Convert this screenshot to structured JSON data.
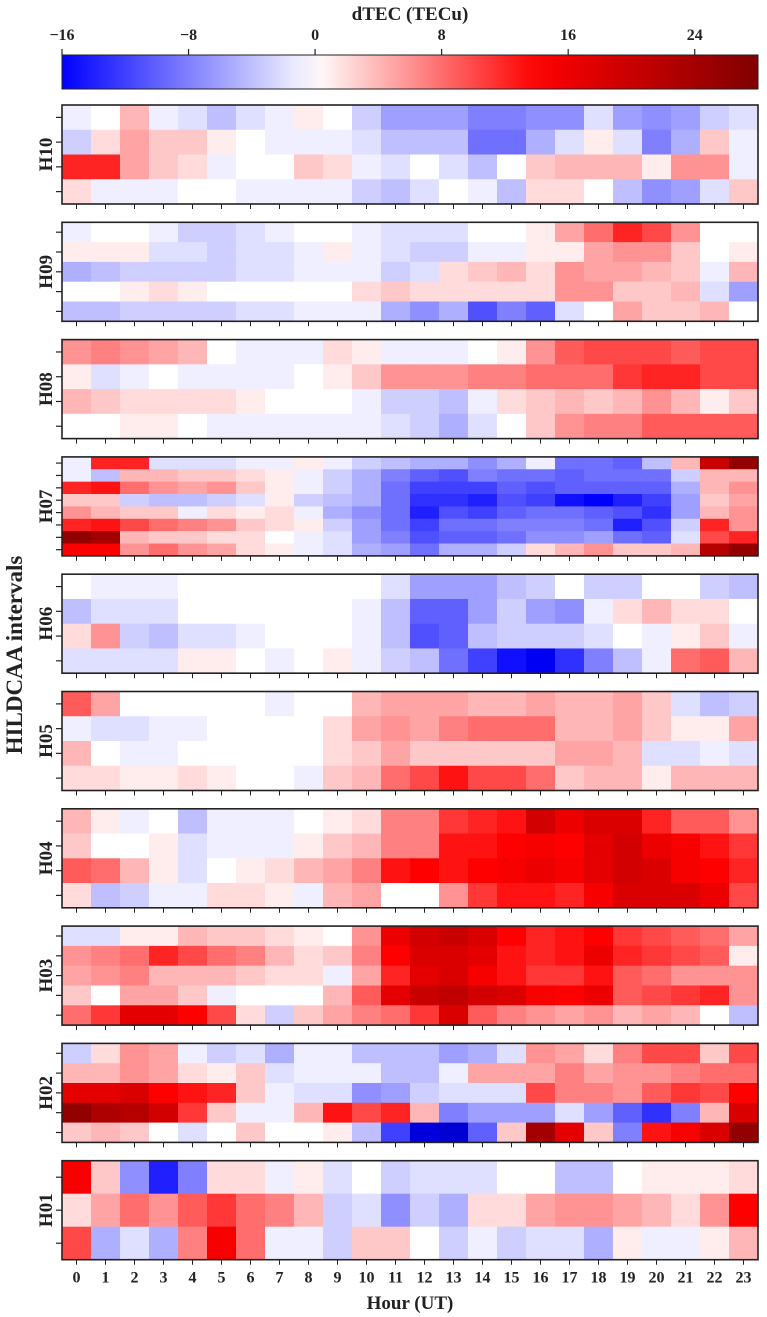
{
  "chart_data": {
    "type": "heatmap",
    "colorbar": {
      "label": "dTEC (TECu)",
      "colormap": "seismic",
      "vmin": -16,
      "vmax": 28,
      "center": 0,
      "ticks": [
        -16,
        -8,
        0,
        8,
        16,
        24
      ],
      "tick_labels": [
        "−16",
        "−8",
        "0",
        "8",
        "16",
        "24"
      ]
    },
    "xlabel": "Hour (UT)",
    "ylabel": "HILDCAA intervals",
    "hours": [
      "0",
      "1",
      "2",
      "3",
      "4",
      "5",
      "6",
      "7",
      "8",
      "9",
      "10",
      "11",
      "12",
      "13",
      "14",
      "15",
      "16",
      "17",
      "18",
      "19",
      "20",
      "21",
      "22",
      "23"
    ],
    "panels": [
      {
        "name": "H10",
        "rows": [
          [
            -1,
            0,
            4,
            -1,
            -2,
            -4,
            -2,
            -1,
            1,
            0,
            -3,
            -6,
            -6,
            -6,
            -8,
            -8,
            -7,
            -7,
            -2,
            -6,
            -7,
            -6,
            -3,
            -2
          ],
          [
            -3,
            2,
            5,
            3,
            3,
            1,
            0,
            -1,
            -1,
            -1,
            -2,
            -4,
            -4,
            -4,
            -9,
            -9,
            -5,
            -2,
            1,
            -2,
            -8,
            -5,
            3,
            -1
          ],
          [
            12,
            12,
            5,
            3,
            2,
            -1,
            0,
            0,
            3,
            2,
            -1,
            -2,
            0,
            -2,
            -4,
            0,
            3,
            4,
            4,
            4,
            1,
            6,
            6,
            -1
          ],
          [
            2,
            -1,
            -1,
            -1,
            0,
            0,
            -1,
            -1,
            -1,
            -1,
            -3,
            -4,
            -2,
            0,
            -1,
            -4,
            2,
            2,
            0,
            -4,
            -7,
            -6,
            -2,
            3
          ]
        ]
      },
      {
        "name": "H09",
        "rows": [
          [
            -1,
            0,
            0,
            -1,
            -3,
            -3,
            -2,
            -1,
            0,
            0,
            -1,
            -2,
            -2,
            -2,
            0,
            0,
            1,
            5,
            8,
            12,
            10,
            6,
            0,
            0
          ],
          [
            1,
            1,
            1,
            -2,
            -2,
            -3,
            -2,
            -2,
            -1,
            1,
            -1,
            -2,
            -3,
            -3,
            -1,
            -1,
            1,
            1,
            5,
            6,
            6,
            3,
            0,
            1
          ],
          [
            -5,
            -4,
            -3,
            -3,
            -3,
            -3,
            -2,
            -2,
            -1,
            -1,
            -1,
            -3,
            -2,
            2,
            3,
            4,
            2,
            6,
            5,
            5,
            4,
            3,
            -1,
            4
          ],
          [
            0,
            0,
            1,
            2,
            1,
            0,
            0,
            0,
            0,
            0,
            2,
            3,
            2,
            2,
            2,
            2,
            2,
            6,
            6,
            3,
            3,
            4,
            -2,
            -6
          ],
          [
            -4,
            -4,
            -3,
            -3,
            -3,
            -3,
            -2,
            -2,
            -1,
            -1,
            -1,
            -5,
            -7,
            -5,
            -11,
            -8,
            -10,
            -2,
            0,
            5,
            3,
            3,
            4,
            0
          ]
        ]
      },
      {
        "name": "H08",
        "rows": [
          [
            6,
            7,
            6,
            5,
            4,
            0,
            -1,
            -1,
            -1,
            2,
            1,
            -1,
            -1,
            -1,
            0,
            1,
            6,
            9,
            10,
            10,
            10,
            9,
            10,
            10
          ],
          [
            1,
            -2,
            -1,
            0,
            -1,
            -1,
            -1,
            -1,
            0,
            1,
            3,
            6,
            6,
            6,
            7,
            7,
            8,
            8,
            8,
            11,
            12,
            12,
            10,
            10
          ],
          [
            4,
            3,
            2,
            2,
            2,
            2,
            1,
            0,
            0,
            0,
            -1,
            -3,
            -3,
            -4,
            -1,
            2,
            3,
            4,
            3,
            4,
            6,
            4,
            1,
            3
          ],
          [
            0,
            0,
            1,
            1,
            0,
            -1,
            -1,
            -1,
            -1,
            -1,
            -1,
            -2,
            -3,
            -5,
            -2,
            0,
            3,
            6,
            7,
            7,
            9,
            9,
            9,
            9
          ]
        ]
      },
      {
        "name": "H07",
        "rows": [
          [
            -1,
            12,
            12,
            -2,
            -2,
            -2,
            -1,
            -1,
            1,
            -1,
            -3,
            -4,
            -5,
            -5,
            -7,
            -5,
            -1,
            -9,
            -9,
            -10,
            -4,
            4,
            20,
            26
          ],
          [
            -1,
            -4,
            4,
            4,
            3,
            3,
            2,
            1,
            -1,
            -3,
            -5,
            -8,
            -10,
            -11,
            -8,
            -9,
            -9,
            -10,
            -9,
            -9,
            -9,
            -3,
            4,
            4
          ],
          [
            12,
            13,
            8,
            6,
            5,
            6,
            3,
            1,
            -1,
            -3,
            -5,
            -9,
            -12,
            -12,
            -12,
            -10,
            -11,
            -10,
            -10,
            -10,
            -10,
            -5,
            4,
            6
          ],
          [
            3,
            3,
            -3,
            -4,
            -4,
            -3,
            -2,
            1,
            -3,
            -4,
            -5,
            -9,
            -13,
            -13,
            -14,
            -11,
            -12,
            -15,
            -16,
            -14,
            -12,
            -6,
            3,
            5
          ],
          [
            6,
            4,
            3,
            3,
            -1,
            2,
            1,
            2,
            -1,
            -5,
            -7,
            -9,
            -14,
            -11,
            -12,
            -10,
            -9,
            -9,
            -10,
            -11,
            -13,
            -6,
            4,
            6
          ],
          [
            12,
            13,
            10,
            8,
            7,
            6,
            3,
            2,
            1,
            -3,
            -6,
            -9,
            -12,
            -9,
            -9,
            -8,
            -8,
            -8,
            -9,
            -14,
            -11,
            -3,
            12,
            6
          ],
          [
            26,
            24,
            4,
            3,
            3,
            2,
            2,
            0,
            -1,
            -2,
            -6,
            -8,
            -11,
            -10,
            -10,
            -9,
            -7,
            -7,
            -6,
            -9,
            -10,
            -2,
            10,
            12
          ],
          [
            14,
            14,
            6,
            8,
            6,
            5,
            2,
            1,
            -1,
            -2,
            -5,
            -6,
            -9,
            -5,
            -5,
            -3,
            2,
            4,
            6,
            3,
            3,
            4,
            22,
            26
          ]
        ]
      },
      {
        "name": "H06",
        "rows": [
          [
            0,
            -1,
            -1,
            -1,
            0,
            0,
            0,
            0,
            0,
            0,
            0,
            -2,
            -6,
            -6,
            -6,
            -4,
            -3,
            0,
            -3,
            -3,
            0,
            0,
            -3,
            -4
          ],
          [
            -4,
            -2,
            -2,
            -2,
            0,
            0,
            0,
            0,
            0,
            0,
            -1,
            -4,
            -10,
            -10,
            -6,
            -3,
            -6,
            -7,
            -1,
            2,
            4,
            2,
            2,
            0
          ],
          [
            2,
            6,
            -3,
            -4,
            -2,
            -2,
            -1,
            0,
            0,
            0,
            -1,
            -4,
            -11,
            -10,
            -4,
            -3,
            -3,
            -3,
            -2,
            0,
            -1,
            1,
            3,
            -1
          ],
          [
            -2,
            -2,
            -2,
            -2,
            1,
            1,
            0,
            -1,
            0,
            1,
            -1,
            -3,
            -4,
            -9,
            -12,
            -15,
            -17,
            -13,
            -8,
            -4,
            -1,
            8,
            9,
            4
          ]
        ]
      },
      {
        "name": "H05",
        "rows": [
          [
            9,
            5,
            0,
            0,
            0,
            0,
            0,
            -1,
            0,
            0,
            4,
            5,
            5,
            5,
            4,
            4,
            5,
            4,
            4,
            5,
            3,
            -2,
            -4,
            -3
          ],
          [
            -1,
            -2,
            -2,
            -1,
            -1,
            0,
            0,
            0,
            0,
            2,
            5,
            6,
            5,
            7,
            8,
            8,
            8,
            4,
            4,
            5,
            3,
            1,
            1,
            5
          ],
          [
            4,
            0,
            -1,
            -1,
            0,
            0,
            0,
            0,
            0,
            2,
            3,
            5,
            3,
            3,
            3,
            3,
            3,
            5,
            5,
            4,
            -2,
            -2,
            -1,
            -2
          ],
          [
            2,
            2,
            1,
            1,
            2,
            1,
            0,
            0,
            -1,
            3,
            4,
            8,
            10,
            13,
            10,
            10,
            8,
            3,
            4,
            4,
            1,
            4,
            4,
            4
          ]
        ]
      },
      {
        "name": "H04",
        "rows": [
          [
            4,
            1,
            -1,
            0,
            -4,
            -1,
            -1,
            -1,
            0,
            1,
            2,
            7,
            7,
            11,
            12,
            13,
            19,
            16,
            18,
            18,
            12,
            9,
            9,
            6
          ],
          [
            3,
            0,
            0,
            1,
            -2,
            -1,
            -1,
            -1,
            1,
            3,
            4,
            7,
            7,
            13,
            13,
            14,
            15,
            14,
            17,
            19,
            16,
            15,
            13,
            11
          ],
          [
            9,
            8,
            4,
            1,
            -2,
            0,
            1,
            2,
            4,
            5,
            7,
            13,
            14,
            13,
            14,
            15,
            16,
            15,
            17,
            19,
            18,
            15,
            14,
            12
          ],
          [
            2,
            -4,
            -3,
            -1,
            -1,
            2,
            2,
            1,
            -1,
            4,
            5,
            0,
            0,
            6,
            11,
            13,
            13,
            12,
            15,
            18,
            18,
            18,
            16,
            10
          ]
        ]
      },
      {
        "name": "H03",
        "rows": [
          [
            -2,
            -2,
            1,
            1,
            4,
            3,
            3,
            2,
            1,
            0,
            6,
            16,
            19,
            20,
            18,
            14,
            12,
            13,
            14,
            11,
            10,
            9,
            8,
            5
          ],
          [
            6,
            7,
            8,
            12,
            10,
            8,
            7,
            4,
            2,
            3,
            7,
            14,
            18,
            18,
            17,
            13,
            12,
            13,
            16,
            12,
            11,
            10,
            9,
            1
          ],
          [
            5,
            6,
            7,
            4,
            4,
            4,
            3,
            2,
            2,
            -1,
            5,
            12,
            17,
            18,
            15,
            13,
            11,
            11,
            13,
            9,
            8,
            6,
            6,
            6
          ],
          [
            3,
            0,
            5,
            5,
            3,
            -1,
            0,
            0,
            0,
            4,
            9,
            17,
            20,
            21,
            19,
            18,
            15,
            14,
            16,
            9,
            10,
            11,
            12,
            6
          ],
          [
            8,
            11,
            17,
            17,
            14,
            10,
            2,
            -3,
            3,
            5,
            7,
            8,
            11,
            18,
            9,
            7,
            6,
            5,
            6,
            4,
            5,
            4,
            0,
            -4
          ]
        ]
      },
      {
        "name": "H02",
        "rows": [
          [
            -3,
            2,
            6,
            5,
            -1,
            -3,
            -2,
            -5,
            -1,
            -1,
            -4,
            -4,
            -4,
            -6,
            -5,
            -2,
            6,
            5,
            2,
            7,
            10,
            10,
            3,
            10
          ],
          [
            4,
            4,
            6,
            5,
            2,
            1,
            3,
            -2,
            -1,
            -1,
            -1,
            -4,
            -4,
            -1,
            5,
            5,
            5,
            7,
            5,
            6,
            6,
            7,
            8,
            8
          ],
          [
            17,
            17,
            18,
            14,
            13,
            12,
            3,
            -1,
            -2,
            -2,
            -7,
            -6,
            -3,
            -2,
            -2,
            -2,
            10,
            7,
            7,
            6,
            9,
            11,
            10,
            14
          ],
          [
            26,
            23,
            22,
            19,
            11,
            3,
            -1,
            -1,
            4,
            13,
            10,
            12,
            4,
            -8,
            -6,
            -6,
            -6,
            -2,
            -6,
            -10,
            -13,
            -8,
            4,
            18
          ],
          [
            3,
            4,
            3,
            0,
            -2,
            0,
            3,
            0,
            0,
            1,
            -4,
            -12,
            -19,
            -20,
            -10,
            3,
            24,
            17,
            3,
            -8,
            13,
            15,
            18,
            26
          ]
        ]
      },
      {
        "name": "H01",
        "rows": [
          [
            15,
            3,
            -7,
            -14,
            -8,
            2,
            2,
            -1,
            1,
            -2,
            0,
            -3,
            -2,
            -2,
            -2,
            0,
            0,
            -4,
            -4,
            0,
            1,
            1,
            1,
            2
          ],
          [
            2,
            5,
            8,
            6,
            9,
            11,
            8,
            7,
            4,
            -3,
            -2,
            -7,
            -3,
            -5,
            2,
            2,
            5,
            6,
            6,
            5,
            4,
            2,
            6,
            14
          ],
          [
            10,
            -5,
            -2,
            -5,
            7,
            15,
            8,
            -1,
            -1,
            -3,
            3,
            3,
            0,
            -3,
            -1,
            -3,
            -2,
            -2,
            -5,
            1,
            -1,
            -1,
            1,
            4
          ]
        ]
      }
    ]
  }
}
